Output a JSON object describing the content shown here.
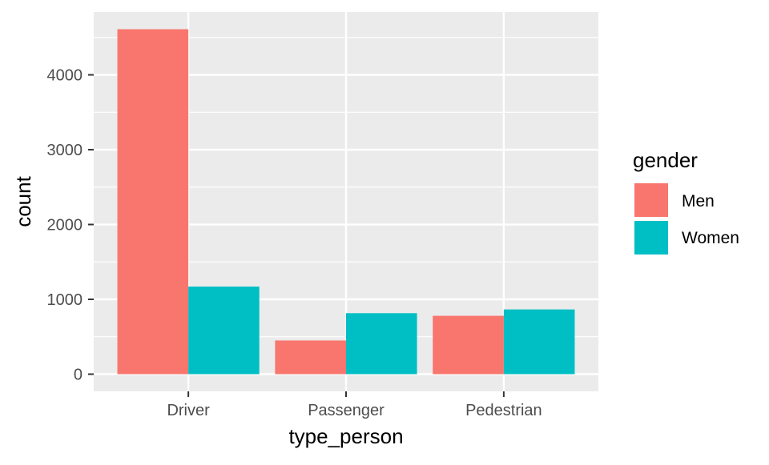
{
  "chart_data": {
    "type": "bar",
    "title": "",
    "xlabel": "type_person",
    "ylabel": "count",
    "categories": [
      "Driver",
      "Passenger",
      "Pedestrian"
    ],
    "series": [
      {
        "name": "Men",
        "values": [
          4610,
          450,
          780
        ]
      },
      {
        "name": "Women",
        "values": [
          1170,
          815,
          865
        ]
      }
    ],
    "ylim": [
      -230,
      4840
    ],
    "yticks": [
      0,
      1000,
      2000,
      3000,
      4000
    ],
    "ytick_labels": [
      "0",
      "1000",
      "2000",
      "3000",
      "4000"
    ],
    "grid": true,
    "legend": {
      "title": "gender",
      "position": "right",
      "labels": [
        "Men",
        "Women"
      ]
    },
    "colors": {
      "Men": "#F8766D",
      "Women": "#00BFC4",
      "panel": "#EBEBEB",
      "grid": "#FFFFFF"
    }
  }
}
